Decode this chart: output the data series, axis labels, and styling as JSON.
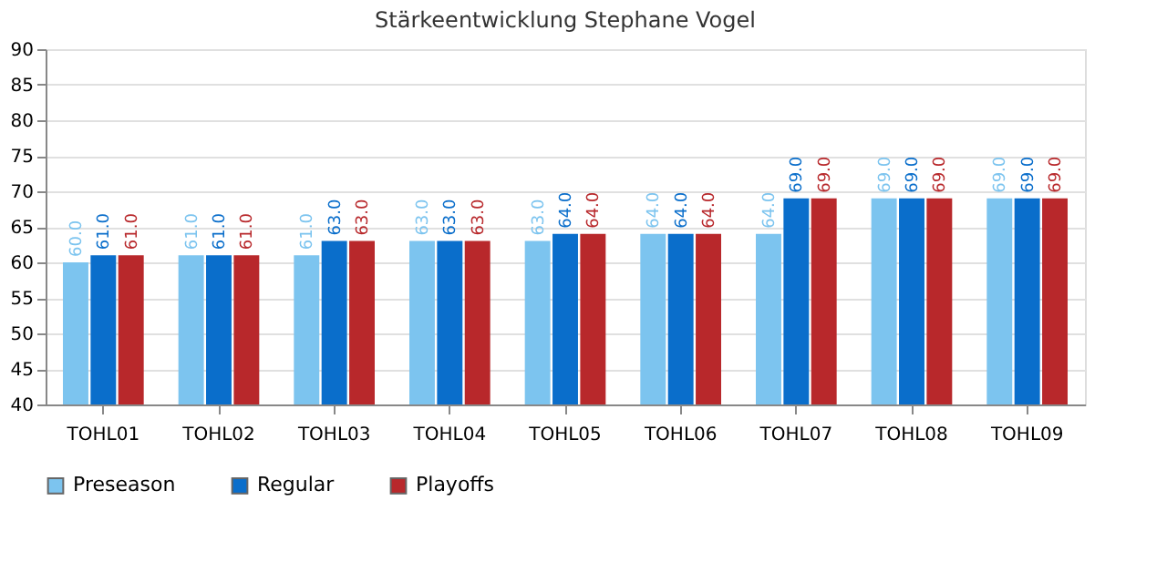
{
  "chart_data": {
    "type": "bar",
    "title": "Stärkeentwicklung Stephane Vogel",
    "categories": [
      "TOHL01",
      "TOHL02",
      "TOHL03",
      "TOHL04",
      "TOHL05",
      "TOHL06",
      "TOHL07",
      "TOHL08",
      "TOHL09"
    ],
    "series": [
      {
        "name": "Preseason",
        "color": "#7cc4ef",
        "values": [
          60,
          61,
          61,
          63,
          63,
          64,
          64,
          69,
          69
        ],
        "value_labels": [
          "60.0",
          "61.0",
          "61.0",
          "63.0",
          "63.0",
          "64.0",
          "64.0",
          "69.0",
          "69.0"
        ]
      },
      {
        "name": "Regular",
        "color": "#0a6ecb",
        "values": [
          61,
          61,
          63,
          63,
          64,
          64,
          69,
          69,
          69
        ],
        "value_labels": [
          "61.0",
          "61.0",
          "63.0",
          "63.0",
          "64.0",
          "64.0",
          "69.0",
          "69.0",
          "69.0"
        ]
      },
      {
        "name": "Playoffs",
        "color": "#b8282b",
        "values": [
          61,
          61,
          63,
          63,
          64,
          64,
          69,
          69,
          69
        ],
        "value_labels": [
          "61.0",
          "61.0",
          "63.0",
          "63.0",
          "64.0",
          "64.0",
          "69.0",
          "69.0",
          "69.0"
        ]
      }
    ],
    "ylim": [
      40,
      90
    ],
    "yticks": [
      40,
      45,
      50,
      55,
      60,
      65,
      70,
      75,
      80,
      85,
      90
    ],
    "grid": "y",
    "legend": "bottom"
  }
}
